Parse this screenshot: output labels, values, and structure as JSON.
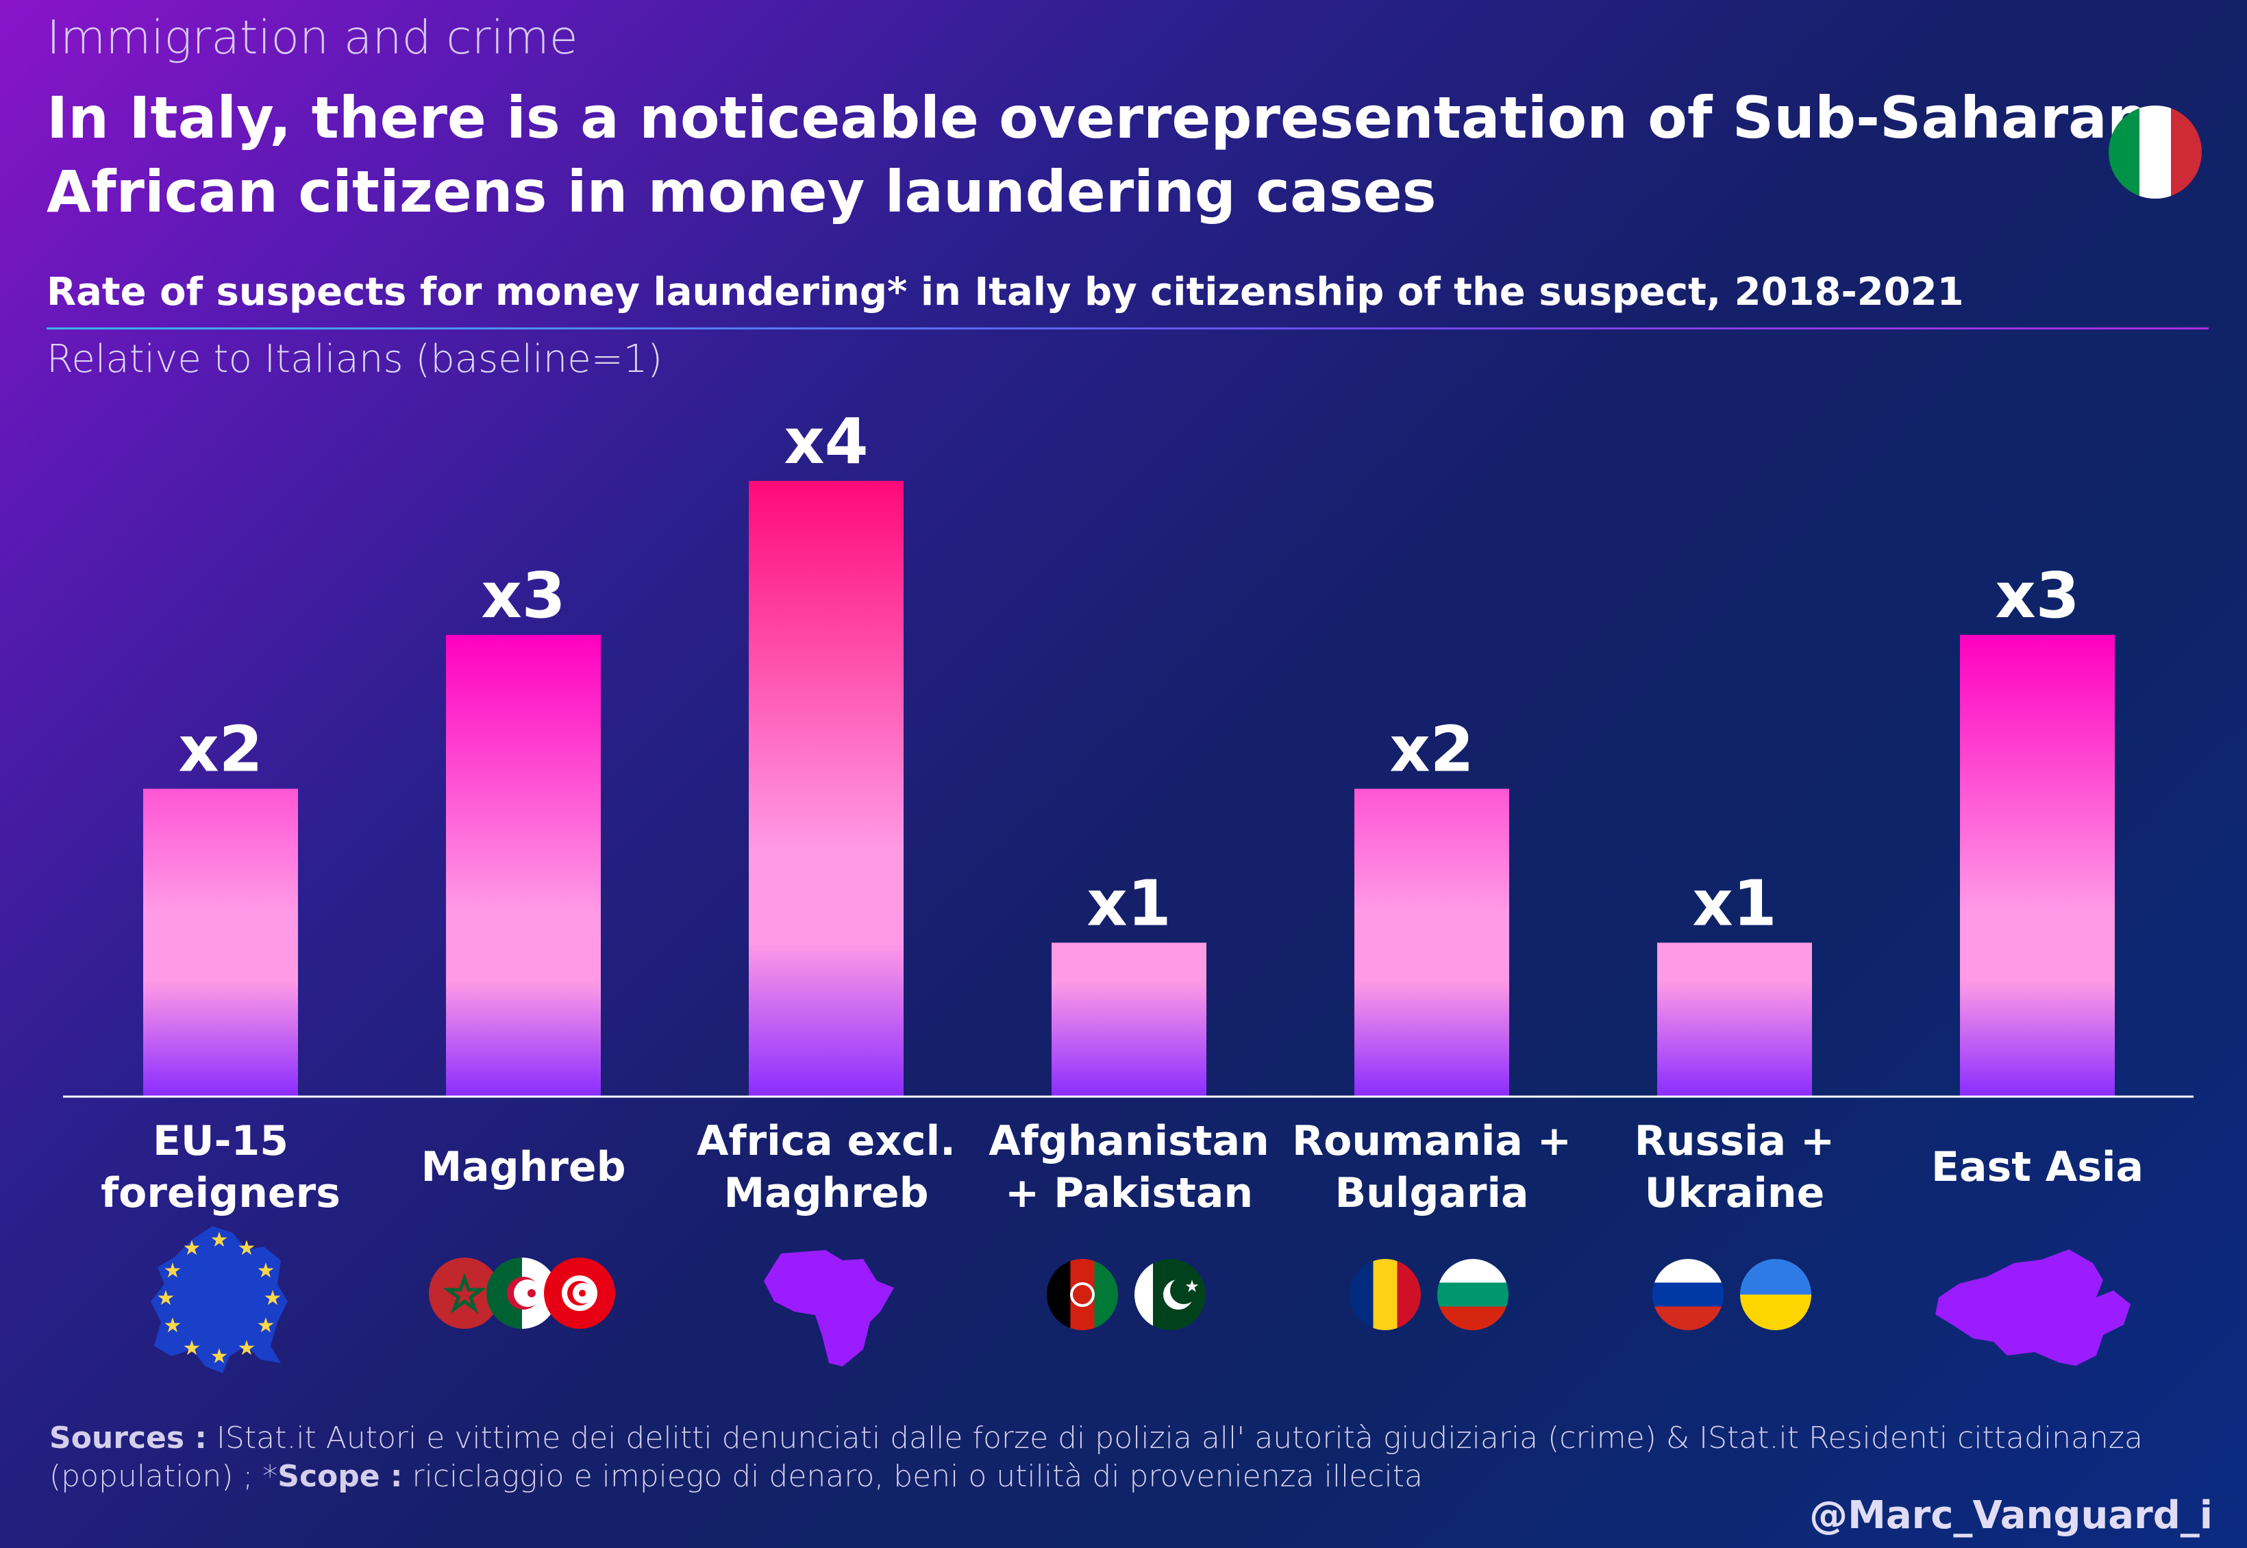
{
  "header": {
    "kicker": "Immigration and crime",
    "title_line1": "In Italy, there is a noticeable overrepresentation of Sub-Saharan",
    "title_line2": "African citizens in money laundering cases",
    "subtitle": "Rate of suspects for money laundering* in Italy by citizenship of the suspect, 2018-2021",
    "note": "Relative to Italians (baseline=1)"
  },
  "colors": {
    "bar_top": "#ff00c0",
    "bar_mid": "#ff9ae6",
    "bar_bottom": "#8a2cff",
    "bar_top_max": "#ff0a78",
    "italy": [
      "#009246",
      "#ffffff",
      "#ce2b37"
    ]
  },
  "chart_data": {
    "type": "bar",
    "categories": [
      "EU-15 foreigners",
      "Maghreb",
      "Africa excl. Maghreb",
      "Afghanistan + Pakistan",
      "Roumania + Bulgaria",
      "Russia + Ukraine",
      "East Asia"
    ],
    "values": [
      2,
      3,
      4,
      1,
      2,
      1,
      3
    ],
    "data_labels": [
      "x2",
      "x3",
      "x4",
      "x1",
      "x2",
      "x1",
      "x3"
    ],
    "ylim": [
      0,
      4.45
    ],
    "grid": false,
    "legend": "none"
  },
  "categories_display": [
    {
      "line1": "EU-15",
      "line2": "foreigners",
      "icon": "eu-map-icon"
    },
    {
      "line1": "Maghreb",
      "line2": "",
      "icon": "maghreb-flags-icon"
    },
    {
      "line1": "Africa excl.",
      "line2": "Maghreb",
      "icon": "africa-map-icon"
    },
    {
      "line1": "Afghanistan",
      "line2": "+ Pakistan",
      "icon": "afghanistan-pakistan-flags-icon"
    },
    {
      "line1": "Roumania +",
      "line2": "Bulgaria",
      "icon": "romania-bulgaria-flags-icon"
    },
    {
      "line1": "Russia +",
      "line2": "Ukraine",
      "icon": "russia-ukraine-flags-icon"
    },
    {
      "line1": "East Asia",
      "line2": "",
      "icon": "east-asia-map-icon"
    }
  ],
  "footer": {
    "sources_label": "Sources :",
    "sources_text": " IStat.it Autori e vittime dei delitti denunciati dalle forze di polizia all' autorità giudiziaria (crime) & IStat.it Residenti cittadinanza (population) ; *",
    "scope_label": "Scope :",
    "scope_text": " riciclaggio e impiego di denaro, beni o utilità di provenienza illecita",
    "handle": "@Marc_Vanguard_i"
  }
}
